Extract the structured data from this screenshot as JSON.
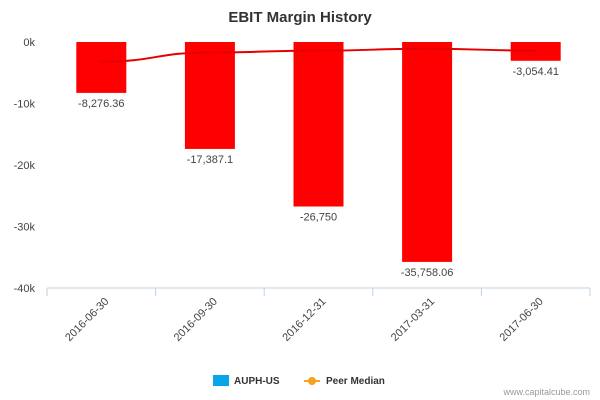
{
  "chart_data": {
    "type": "bar",
    "title": "EBIT Margin History",
    "categories": [
      "2016-06-30",
      "2016-09-30",
      "2016-12-31",
      "2017-03-31",
      "2017-06-30"
    ],
    "series": [
      {
        "name": "AUPH-US",
        "type": "bar",
        "values": [
          -8276.36,
          -17387.1,
          -26750,
          -35758.06,
          -3054.41
        ],
        "data_labels": [
          "-8,276.36",
          "-17,387.1",
          "-26,750",
          "-35,758.06",
          "-3,054.41"
        ]
      },
      {
        "name": "Peer Median",
        "type": "line",
        "values": [
          -3200,
          -1700,
          -1400,
          -1100,
          -1400
        ]
      }
    ],
    "ylim": [
      -40000,
      0
    ],
    "yticks": [
      0,
      -10000,
      -20000,
      -30000,
      -40000
    ],
    "ytick_labels": [
      "0k",
      "-10k",
      "-20k",
      "-30k",
      "-40k"
    ],
    "grid": false,
    "legend_position": "bottom-center"
  },
  "colors": {
    "bar": "#ff0000",
    "peer_line": "#e60000",
    "legend_auph": "#0aa5e8",
    "legend_peer": "#f7a21b"
  },
  "credit": "www.capitalcube.com"
}
